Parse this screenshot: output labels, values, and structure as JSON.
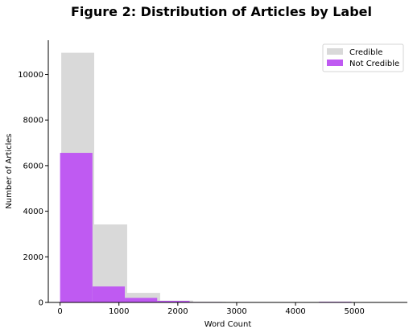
{
  "chart_data": {
    "type": "bar",
    "title": "Figure 2: Distribution of Articles by Label",
    "xlabel": "Word Count",
    "ylabel": "Number of Articles",
    "xlim": [
      -200,
      5900
    ],
    "ylim": [
      0,
      11500
    ],
    "xticks": [
      0,
      1000,
      2000,
      3000,
      4000,
      5000
    ],
    "yticks": [
      0,
      2000,
      4000,
      6000,
      8000,
      10000
    ],
    "grid": false,
    "legend_position": "top-right",
    "series": [
      {
        "name": "Credible",
        "color": "#d9d9d9",
        "bins": [
          {
            "x0": 20,
            "x1": 580,
            "value": 10950
          },
          {
            "x0": 580,
            "x1": 1140,
            "value": 3420
          },
          {
            "x0": 1140,
            "x1": 1700,
            "value": 420
          },
          {
            "x0": 1700,
            "x1": 2260,
            "value": 80
          },
          {
            "x0": 2260,
            "x1": 2820,
            "value": 25
          },
          {
            "x0": 2820,
            "x1": 3380,
            "value": 10
          },
          {
            "x0": 3380,
            "x1": 3940,
            "value": 5
          },
          {
            "x0": 3940,
            "x1": 4500,
            "value": 3
          },
          {
            "x0": 4500,
            "x1": 5060,
            "value": 2
          },
          {
            "x0": 5060,
            "x1": 5620,
            "value": 1
          }
        ]
      },
      {
        "name": "Not Credible",
        "color": "#bf5af2",
        "bins": [
          {
            "x0": 0,
            "x1": 550,
            "value": 6560
          },
          {
            "x0": 550,
            "x1": 1100,
            "value": 700
          },
          {
            "x0": 1100,
            "x1": 1650,
            "value": 200
          },
          {
            "x0": 1650,
            "x1": 2200,
            "value": 70
          },
          {
            "x0": 2200,
            "x1": 2750,
            "value": 20
          },
          {
            "x0": 2750,
            "x1": 3300,
            "value": 10
          },
          {
            "x0": 3300,
            "x1": 3850,
            "value": 3
          },
          {
            "x0": 3850,
            "x1": 4400,
            "value": 2
          },
          {
            "x0": 4400,
            "x1": 4950,
            "value": 30
          }
        ]
      }
    ]
  }
}
